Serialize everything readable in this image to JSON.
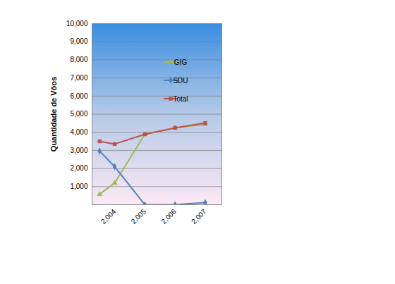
{
  "chart_data": {
    "type": "line",
    "y_label": "Quantidade de Vôos",
    "x": [
      2003.5,
      2004,
      2005,
      2006,
      2007
    ],
    "xlim": [
      2003.25,
      2007.55
    ],
    "xticks": [
      {
        "value": 2004,
        "label": "2,004"
      },
      {
        "value": 2005,
        "label": "2,005"
      },
      {
        "value": 2006,
        "label": "2,006"
      },
      {
        "value": 2007,
        "label": "2,007"
      }
    ],
    "ylim": [
      0,
      10000
    ],
    "yticks": [
      {
        "value": 1000,
        "label": "1,000"
      },
      {
        "value": 2000,
        "label": "2,000"
      },
      {
        "value": 3000,
        "label": "3,000"
      },
      {
        "value": 4000,
        "label": "4,000"
      },
      {
        "value": 5000,
        "label": "5,000"
      },
      {
        "value": 6000,
        "label": "6,000"
      },
      {
        "value": 7000,
        "label": "7,000"
      },
      {
        "value": 8000,
        "label": "8,000"
      },
      {
        "value": 9000,
        "label": "9,000"
      },
      {
        "value": 10000,
        "label": "10,000"
      }
    ],
    "grid": true,
    "legend": "top",
    "series": [
      {
        "name": "GIG",
        "color": "#9bbb59",
        "marker": "triangle",
        "values": [
          580,
          1200,
          3890,
          4240,
          4440
        ]
      },
      {
        "name": "SDU",
        "color": "#4f81bd",
        "marker": "diamond",
        "values": [
          2960,
          2100,
          0,
          0,
          120
        ]
      },
      {
        "name": "Total",
        "color": "#c0504d",
        "marker": "square",
        "values": [
          3500,
          3350,
          3890,
          4240,
          4510
        ]
      }
    ]
  }
}
